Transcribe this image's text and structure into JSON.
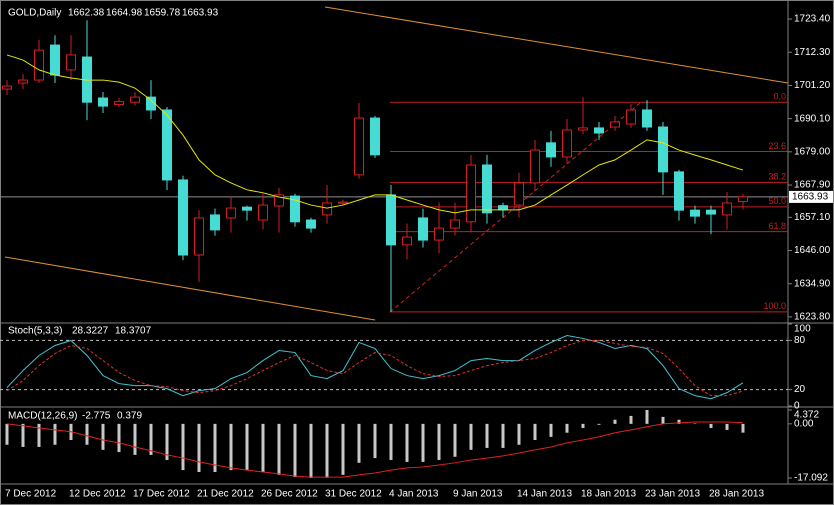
{
  "chart_data": [
    {
      "type": "candlestick",
      "title": "GOLD,Daily",
      "categories": [
        "7 Dec 2012",
        null,
        null,
        null,
        "12 Dec 2012",
        null,
        null,
        null,
        "17 Dec 2012",
        null,
        null,
        null,
        "21 Dec 2012",
        null,
        null,
        null,
        "26 Dec 2012",
        null,
        null,
        null,
        "31 Dec 2012",
        null,
        null,
        null,
        "4 Jan 2013",
        null,
        null,
        null,
        "9 Jan 2013",
        null,
        null,
        null,
        "14 Jan 2013",
        null,
        null,
        null,
        "18 Jan 2013",
        null,
        null,
        null,
        "23 Jan 2013",
        null,
        null,
        null,
        "28 Jan 2013",
        null,
        null
      ],
      "open": [
        1700,
        1702,
        1703,
        1714.7,
        1706.4,
        1710.7,
        1697,
        1694.8,
        1695.6,
        1697.3,
        1693,
        1669.6,
        1644.5,
        1657.9,
        1656.9,
        1660.5,
        1656.2,
        1660.9,
        1664.2,
        1656.2,
        1657.9,
        1661.8,
        1671.3,
        1690.3,
        1664.6,
        1647.9,
        1656.9,
        1649.5,
        1653.5,
        1655.6,
        1674.6,
        1661,
        1661.2,
        1668.6,
        1682,
        1677.3,
        1686.3,
        1687,
        1687.3,
        1688.3,
        1693,
        1687.3,
        1672.3,
        1659.5,
        1659.5,
        1657.9,
        1662.38
      ],
      "high": [
        1703,
        1705,
        1716.4,
        1718,
        1718,
        1723,
        1699,
        1697,
        1699,
        1703,
        1694,
        1671,
        1659.5,
        1660,
        1664,
        1661,
        1665,
        1667,
        1665,
        1657,
        1667.9,
        1663,
        1695.3,
        1691,
        1667.9,
        1655,
        1660,
        1662,
        1662,
        1678,
        1678,
        1662,
        1672,
        1683,
        1686,
        1690,
        1697.3,
        1689,
        1691,
        1695,
        1696.3,
        1689,
        1673,
        1661,
        1661,
        1665.6,
        1664.98
      ],
      "low": [
        1698,
        1700,
        1702,
        1702,
        1703,
        1689.6,
        1692,
        1694,
        1694.5,
        1690,
        1666.2,
        1642.8,
        1635.5,
        1651,
        1652,
        1656,
        1653,
        1652,
        1654,
        1652,
        1655,
        1661,
        1670,
        1677,
        1625.5,
        1643,
        1647,
        1645,
        1651,
        1652,
        1655,
        1657,
        1657,
        1666,
        1674,
        1675,
        1685,
        1683,
        1686,
        1687,
        1686,
        1664.6,
        1656,
        1655,
        1651.5,
        1653,
        1659.78
      ],
      "close": [
        1701,
        1703,
        1713,
        1704.7,
        1711.4,
        1695.6,
        1694.3,
        1695.8,
        1697.3,
        1693,
        1669.6,
        1644.5,
        1656.9,
        1652.9,
        1660.2,
        1659.5,
        1661.2,
        1664.6,
        1655.6,
        1653.5,
        1661.9,
        1662.2,
        1690.3,
        1678,
        1647.9,
        1650.5,
        1649.5,
        1653.5,
        1656.2,
        1674.6,
        1658.6,
        1659.6,
        1668.6,
        1679.6,
        1677.3,
        1686.3,
        1687,
        1685.3,
        1689,
        1693,
        1687.3,
        1672.3,
        1659.5,
        1657.5,
        1658.2,
        1661.9,
        1663.93
      ],
      "up_color": "#d02020",
      "down_color": "#46dcd4",
      "ma": {
        "color": "#e6e600",
        "values": [
          1711.4,
          1709.7,
          1706.4,
          1704.7,
          1703.7,
          1703,
          1703,
          1702.3,
          1700.3,
          1696.3,
          1691.3,
          1684.6,
          1676.3,
          1671.3,
          1668.6,
          1666.3,
          1665.3,
          1663.9,
          1662.9,
          1661.2,
          1660.2,
          1661.2,
          1662.9,
          1664.6,
          1664.6,
          1662.9,
          1661.2,
          1659.6,
          1658.6,
          1659.6,
          1659.6,
          1659.6,
          1659.6,
          1661.2,
          1664.6,
          1667.9,
          1671.3,
          1674.6,
          1676.3,
          1679.6,
          1683,
          1682,
          1679.6,
          1677.9,
          1676.3,
          1674.6,
          1672.9
        ]
      },
      "fibo": {
        "color": "#c02020",
        "levels": [
          {
            "label": "0.0",
            "value": 1695.6
          },
          {
            "label": "23.6",
            "value": 1679.1
          },
          {
            "label": "38.2",
            "value": 1668.8
          },
          {
            "label": "50.0",
            "value": 1660.6
          },
          {
            "label": "61.8",
            "value": 1652.3
          },
          {
            "label": "100.0",
            "value": 1625.5
          }
        ]
      },
      "ylim": [
        1622.1,
        1728.1
      ],
      "yticks": [
        {
          "value": 1723.4,
          "label": "1723.40"
        },
        {
          "value": 1712.3,
          "label": "1712.30"
        },
        {
          "value": 1701.2,
          "label": "1701.20"
        },
        {
          "value": 1690.1,
          "label": "1690.10"
        },
        {
          "value": 1679,
          "label": "1679.00"
        },
        {
          "value": 1667.9,
          "label": "1667.90"
        },
        {
          "value": 1657.1,
          "label": "1657.10"
        },
        {
          "value": 1646,
          "label": "1646.00"
        },
        {
          "value": 1634.9,
          "label": "1634.90"
        },
        {
          "value": 1623.8,
          "label": "1623.80"
        }
      ]
    },
    {
      "type": "line",
      "title": "Stoch(5,3,3)",
      "series": [
        {
          "color": "#40c4d4",
          "dashed": false,
          "values": [
            22.4,
            43.2,
            61.6,
            73.8,
            79.9,
            61.6,
            37.1,
            27.3,
            24.8,
            24.8,
            21.2,
            12.6,
            18.7,
            21.2,
            33.4,
            40.8,
            55.4,
            67.7,
            65.2,
            37.1,
            33.4,
            43.2,
            77.5,
            70.1,
            45.7,
            37.1,
            33.4,
            37.1,
            43.2,
            55.4,
            57.9,
            55.4,
            55.4,
            67.7,
            77.5,
            86,
            82.4,
            77.5,
            70.1,
            73.8,
            70.1,
            49.3,
            21.2,
            12.6,
            8.9,
            16.3,
            28.3227
          ]
        },
        {
          "color": "#e03030",
          "dashed": true,
          "values": [
            18.7,
            31,
            49.3,
            64,
            73.8,
            70.1,
            55.4,
            40.8,
            31,
            24.8,
            23.6,
            18.7,
            16.3,
            18.7,
            24.8,
            33.4,
            43.2,
            53,
            61.6,
            53,
            43.2,
            39.5,
            53,
            65.2,
            61.6,
            49.3,
            39.5,
            35.9,
            37.1,
            43.2,
            49.3,
            53,
            55.4,
            57.9,
            65.2,
            73.8,
            79.9,
            79.9,
            76.3,
            72.6,
            71.4,
            64,
            45.7,
            24.8,
            12.6,
            12.6,
            18.3707
          ]
        }
      ],
      "ylim": [
        0,
        100
      ],
      "yticks": [
        0,
        20,
        80,
        100
      ]
    },
    {
      "type": "bar",
      "title": "MACD(12,26,9)",
      "color": "#c8c8c8",
      "values": [
        -6.6,
        -7.3,
        -7.3,
        -6.6,
        -5.1,
        -6.6,
        -8.2,
        -8.9,
        -9.8,
        -9.8,
        -11.4,
        -14.6,
        -15.2,
        -15.2,
        -14.6,
        -14.6,
        -15.2,
        -16.1,
        -16.8,
        -17.092,
        -17,
        -16.1,
        -12.3,
        -10.8,
        -11.4,
        -12,
        -12,
        -11.4,
        -10.4,
        -8.2,
        -7.6,
        -7.6,
        -6.6,
        -5.1,
        -4.1,
        -2.8,
        -1.3,
        -0.3,
        1.3,
        2.5,
        4.372,
        2.2,
        1.3,
        0.1,
        -1.3,
        -1.9,
        -2.775
      ],
      "signal": {
        "color": "#e02020",
        "values": [
          0,
          -0.6,
          -1.3,
          -1.9,
          -2.5,
          -3.8,
          -5.1,
          -6,
          -7.3,
          -8.5,
          -9.8,
          -10.8,
          -12,
          -13,
          -13.9,
          -14.6,
          -15.2,
          -15.8,
          -16.5,
          -16.8,
          -16.8,
          -16.8,
          -16.1,
          -15.5,
          -14.6,
          -13.9,
          -13.6,
          -13,
          -12.3,
          -11.4,
          -10.8,
          -10.1,
          -9.2,
          -8.2,
          -7.3,
          -6,
          -5.1,
          -4.1,
          -2.8,
          -1.9,
          -0.9,
          0,
          0.3,
          0.6,
          0.6,
          0.6,
          0.379
        ]
      },
      "ylim": [
        -17.092,
        4.372
      ],
      "yticks": [
        4.372,
        {
          "value": 0,
          "label": "0.00"
        },
        -17.092
      ]
    }
  ]
}
